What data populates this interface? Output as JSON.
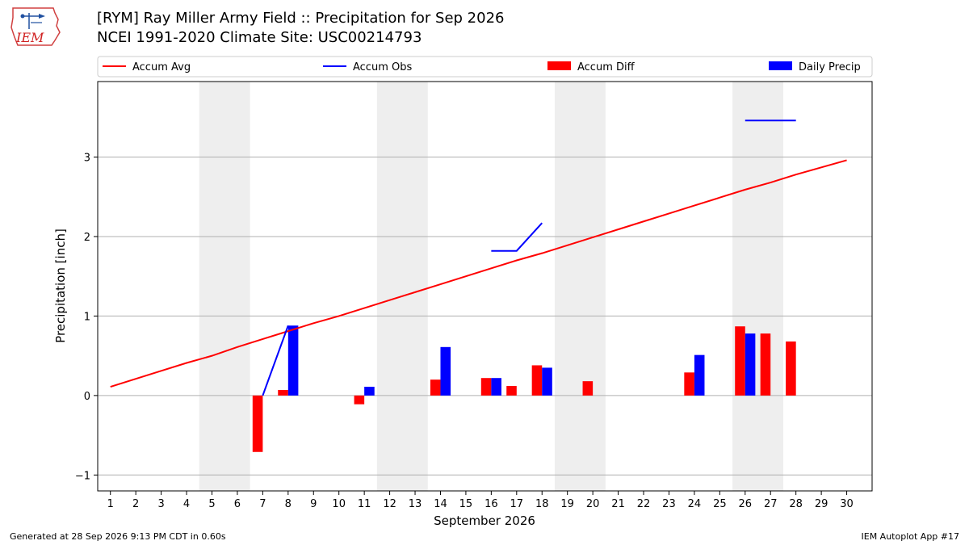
{
  "header": {
    "title_line1": "[RYM] Ray Miller Army Field :: Precipitation for Sep 2026",
    "title_line2": "NCEI 1991-2020 Climate Site: USC00214793",
    "logo_text": "IEM"
  },
  "footer": {
    "generated": "Generated at 28 Sep 2026 9:13 PM CDT in 0.60s",
    "app": "IEM Autoplot App #17"
  },
  "colors": {
    "avg": "#ff0000",
    "obs": "#0000ff",
    "diff": "#ff0000",
    "daily": "#0000ff",
    "weekend_shade": "#eeeeee",
    "grid": "#b0b0b0"
  },
  "chart_data": {
    "type": "bar",
    "xlabel": "September 2026",
    "ylabel": "Precipitation [inch]",
    "xlim": [
      0.5,
      31.0
    ],
    "ylim": [
      -1.2,
      3.95
    ],
    "x_ticks": [
      1,
      2,
      3,
      4,
      5,
      6,
      7,
      8,
      9,
      10,
      11,
      12,
      13,
      14,
      15,
      16,
      17,
      18,
      19,
      20,
      21,
      22,
      23,
      24,
      25,
      26,
      27,
      28,
      29,
      30
    ],
    "y_ticks": [
      -1,
      0,
      1,
      2,
      3
    ],
    "grid": "horizontal",
    "legend": {
      "placement": "top",
      "entries": [
        {
          "label": "Accum Avg",
          "kind": "line",
          "color": "#ff0000"
        },
        {
          "label": "Accum Obs",
          "kind": "line",
          "color": "#0000ff"
        },
        {
          "label": "Accum Diff",
          "kind": "patch",
          "color": "#ff0000"
        },
        {
          "label": "Daily Precip",
          "kind": "patch",
          "color": "#0000ff"
        }
      ]
    },
    "weekend_bands": [
      [
        5,
        6
      ],
      [
        12,
        13
      ],
      [
        19,
        20
      ],
      [
        26,
        27
      ]
    ],
    "series": [
      {
        "name": "Accum Avg",
        "kind": "line",
        "x": [
          1,
          2,
          3,
          4,
          5,
          6,
          7,
          8,
          9,
          10,
          11,
          12,
          13,
          14,
          15,
          16,
          17,
          18,
          19,
          20,
          21,
          22,
          23,
          24,
          25,
          26,
          27,
          28,
          29,
          30
        ],
        "y": [
          0.11,
          0.21,
          0.31,
          0.41,
          0.5,
          0.61,
          0.71,
          0.81,
          0.91,
          1.0,
          1.1,
          1.2,
          1.3,
          1.4,
          1.5,
          1.6,
          1.7,
          1.79,
          1.89,
          1.99,
          2.09,
          2.19,
          2.29,
          2.39,
          2.49,
          2.59,
          2.68,
          2.78,
          2.87,
          2.96
        ]
      },
      {
        "name": "Accum Obs",
        "kind": "line",
        "segments": [
          {
            "x": [
              7,
              8
            ],
            "y": [
              0.0,
              0.88
            ]
          },
          {
            "x": [
              16,
              17,
              18
            ],
            "y": [
              1.82,
              1.82,
              2.17
            ]
          },
          {
            "x": [
              26,
              27,
              28
            ],
            "y": [
              3.46,
              3.46,
              3.46
            ]
          }
        ]
      },
      {
        "name": "Accum Diff",
        "kind": "bar",
        "x": [
          7,
          8,
          11,
          14,
          16,
          17,
          18,
          20,
          24,
          26,
          27,
          28
        ],
        "y": [
          -0.71,
          0.07,
          -0.11,
          0.2,
          0.22,
          0.12,
          0.38,
          0.18,
          0.29,
          0.87,
          0.78,
          0.68
        ]
      },
      {
        "name": "Daily Precip",
        "kind": "bar",
        "x": [
          8,
          11,
          14,
          16,
          18,
          24,
          26
        ],
        "y": [
          0.88,
          0.11,
          0.61,
          0.22,
          0.35,
          0.51,
          0.78
        ]
      }
    ]
  }
}
